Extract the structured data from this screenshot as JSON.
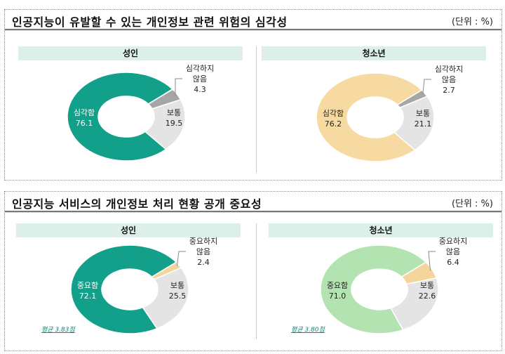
{
  "chart_data": [
    {
      "type": "pie",
      "title": "인공지능이 유발할 수 있는 개인정보 관련 위험의 심각성",
      "unit": "(단위 : %)",
      "charts": [
        {
          "name": "성인",
          "slices": [
            {
              "label": "심각하지 않음",
              "value": 4.3,
              "color": "#a6a6a6"
            },
            {
              "label": "보통",
              "value": 19.5,
              "color": "#e4e4e4"
            },
            {
              "label": "심각함",
              "value": 76.1,
              "color": "#12a08a"
            }
          ]
        },
        {
          "name": "청소년",
          "slices": [
            {
              "label": "심각하지 않음",
              "value": 2.7,
              "color": "#a6a6a6"
            },
            {
              "label": "보통",
              "value": 21.1,
              "color": "#e4e4e4"
            },
            {
              "label": "심각함",
              "value": 76.2,
              "color": "#f7d9a2"
            }
          ]
        }
      ]
    },
    {
      "type": "pie",
      "title": "인공지능 서비스의 개인정보 처리 현황 공개 중요성",
      "unit": "(단위 : %)",
      "charts": [
        {
          "name": "성인",
          "avg": "평균 3.83점",
          "slices": [
            {
              "label": "중요하지 않음",
              "value": 2.4,
              "color": "#f5d59c"
            },
            {
              "label": "보통",
              "value": 25.5,
              "color": "#e4e4e4"
            },
            {
              "label": "중요함",
              "value": 72.1,
              "color": "#12a08a"
            }
          ]
        },
        {
          "name": "청소년",
          "avg": "평균 3.80점",
          "slices": [
            {
              "label": "중요하지 않음",
              "value": 6.4,
              "color": "#f5d59c"
            },
            {
              "label": "보통",
              "value": 22.6,
              "color": "#e4e4e4"
            },
            {
              "label": "중요함",
              "value": 71.0,
              "color": "#b3e3b0"
            }
          ]
        }
      ]
    }
  ]
}
